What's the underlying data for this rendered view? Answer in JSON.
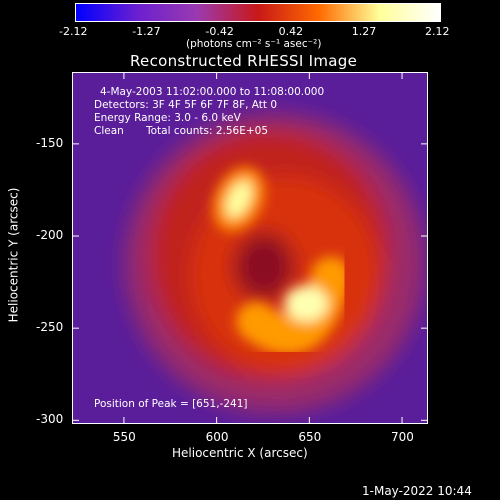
{
  "colorbar": {
    "ticks": [
      "-2.12",
      "-1.27",
      "-0.42",
      "0.42",
      "1.27",
      "2.12"
    ],
    "unit_label": "(photons cm⁻² s⁻¹ asec⁻²)",
    "colors": [
      "#0000ff",
      "#6a1fd0",
      "#9b3ab0",
      "#c81818",
      "#ff6a00",
      "#ffff99",
      "#ffffff"
    ]
  },
  "annotations": {
    "time_range": "4-May-2003 11:02:00.000 to 11:08:00.000",
    "detectors": "Detectors: 3F 4F 5F 6F 7F 8F, Att 0",
    "energy": "Energy Range: 3.0 - 6.0 keV",
    "method": "Clean",
    "counts": "Total counts: 2.56E+05",
    "peak": "Position of Peak = [651,-241]"
  },
  "datestamp": "1-May-2022 10:44",
  "chart_data": {
    "type": "heatmap",
    "title": "Reconstructed RHESSI Image",
    "xlabel": "Heliocentric X (arcsec)",
    "ylabel": "Heliocentric Y (arcsec)",
    "xlim": [
      522,
      714
    ],
    "ylim": [
      -302,
      -111
    ],
    "xticks": [
      550,
      600,
      650,
      700
    ],
    "yticks": [
      -150,
      -200,
      -250,
      -300
    ],
    "xtick_labels": [
      "550",
      "600",
      "650",
      "700"
    ],
    "ytick_labels": [
      "-150",
      "-200",
      "-250",
      "-300"
    ],
    "peak": [
      651,
      -241
    ],
    "sources": [
      {
        "x": 612,
        "y": -180,
        "intensity": 1.0
      },
      {
        "x": 651,
        "y": -241,
        "intensity": 1.0
      },
      {
        "x": 632,
        "y": -222,
        "intensity": 0.3
      }
    ]
  }
}
